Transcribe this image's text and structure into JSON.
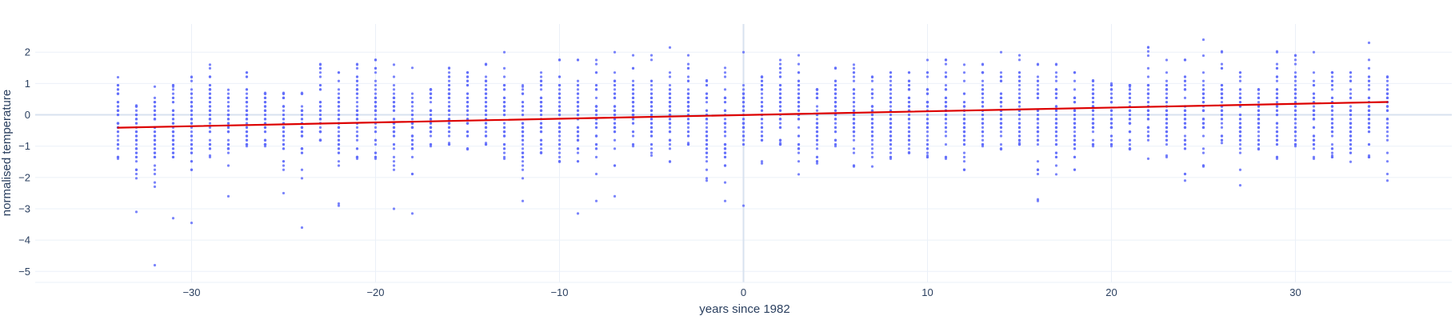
{
  "chart_data": {
    "type": "scatter",
    "xlabel": "years since 1982",
    "ylabel": "normalised temperature",
    "xlim": [
      -38.5,
      38.5
    ],
    "ylim": [
      -5.35,
      2.9
    ],
    "x_ticks": [
      -30,
      -20,
      -10,
      0,
      10,
      20,
      30
    ],
    "y_ticks": [
      2,
      1,
      0,
      -1,
      -2,
      -3,
      -4,
      -5
    ],
    "grid": true,
    "colors": {
      "points": "#636efa",
      "trend": "#dd0000",
      "grid": "#ebf0f8",
      "zeroline": "#d8e2ef",
      "text": "#2a3f5f"
    },
    "years": [
      -34,
      -33,
      -32,
      -31,
      -30,
      -29,
      -28,
      -27,
      -26,
      -25,
      -24,
      -23,
      -22,
      -21,
      -20,
      -19,
      -18,
      -17,
      -16,
      -15,
      -14,
      -13,
      -12,
      -11,
      -10,
      -9,
      -8,
      -7,
      -6,
      -5,
      -4,
      -3,
      -2,
      -1,
      0,
      1,
      2,
      3,
      4,
      5,
      6,
      7,
      8,
      9,
      10,
      11,
      12,
      13,
      14,
      15,
      16,
      17,
      18,
      19,
      20,
      21,
      22,
      23,
      24,
      25,
      26,
      27,
      28,
      29,
      30,
      31,
      32,
      33,
      34,
      35
    ],
    "points_per_year": 45,
    "columns": [
      {
        "x": -34,
        "min": -1.4,
        "max": 1.2
      },
      {
        "x": -33,
        "min": -3.1,
        "max": 0.3
      },
      {
        "x": -32,
        "min": -4.8,
        "max": 0.9
      },
      {
        "x": -31,
        "min": -3.3,
        "max": 0.9
      },
      {
        "x": -30,
        "min": -3.45,
        "max": 1.2
      },
      {
        "x": -29,
        "min": -1.3,
        "max": 1.6
      },
      {
        "x": -28,
        "min": -2.6,
        "max": 0.8
      },
      {
        "x": -27,
        "min": -1.0,
        "max": 1.35
      },
      {
        "x": -26,
        "min": -1.0,
        "max": 0.7
      },
      {
        "x": -25,
        "min": -2.5,
        "max": 0.7
      },
      {
        "x": -24,
        "min": -3.6,
        "max": 0.7
      },
      {
        "x": -23,
        "min": -0.8,
        "max": 1.6
      },
      {
        "x": -22,
        "min": -2.9,
        "max": 1.35
      },
      {
        "x": -21,
        "min": -1.4,
        "max": 1.6
      },
      {
        "x": -20,
        "min": -1.4,
        "max": 1.75
      },
      {
        "x": -19,
        "min": -3.0,
        "max": 1.6
      },
      {
        "x": -18,
        "min": -3.15,
        "max": 1.5
      },
      {
        "x": -17,
        "min": -1.0,
        "max": 0.8
      },
      {
        "x": -16,
        "min": -0.9,
        "max": 1.5
      },
      {
        "x": -15,
        "min": -1.1,
        "max": 1.35
      },
      {
        "x": -14,
        "min": -0.9,
        "max": 1.6
      },
      {
        "x": -13,
        "min": -1.4,
        "max": 2.0
      },
      {
        "x": -12,
        "min": -2.75,
        "max": 0.9
      },
      {
        "x": -11,
        "min": -1.2,
        "max": 1.35
      },
      {
        "x": -10,
        "min": -1.5,
        "max": 1.75
      },
      {
        "x": -9,
        "min": -3.15,
        "max": 1.75
      },
      {
        "x": -8,
        "min": -2.75,
        "max": 1.75
      },
      {
        "x": -7,
        "min": -2.6,
        "max": 2.0
      },
      {
        "x": -6,
        "min": -1.0,
        "max": 1.9
      },
      {
        "x": -5,
        "min": -1.3,
        "max": 1.9
      },
      {
        "x": -4,
        "min": -1.5,
        "max": 2.15
      },
      {
        "x": -3,
        "min": -0.9,
        "max": 1.9
      },
      {
        "x": -2,
        "min": -2.1,
        "max": 1.1
      },
      {
        "x": -1,
        "min": -2.75,
        "max": 1.5
      },
      {
        "x": 0,
        "min": -2.9,
        "max": 2.0
      },
      {
        "x": 1,
        "min": -1.55,
        "max": 1.2
      },
      {
        "x": 2,
        "min": -0.9,
        "max": 1.75
      },
      {
        "x": 3,
        "min": -1.9,
        "max": 1.9
      },
      {
        "x": 4,
        "min": -1.55,
        "max": 0.8
      },
      {
        "x": 5,
        "min": -1.0,
        "max": 1.5
      },
      {
        "x": 6,
        "min": -1.65,
        "max": 1.6
      },
      {
        "x": 7,
        "min": -1.65,
        "max": 1.2
      },
      {
        "x": 8,
        "min": -1.4,
        "max": 1.35
      },
      {
        "x": 9,
        "min": -1.2,
        "max": 1.35
      },
      {
        "x": 10,
        "min": -1.3,
        "max": 1.75
      },
      {
        "x": 11,
        "min": -1.4,
        "max": 1.75
      },
      {
        "x": 12,
        "min": -1.75,
        "max": 1.6
      },
      {
        "x": 13,
        "min": -1.0,
        "max": 1.6
      },
      {
        "x": 14,
        "min": -1.1,
        "max": 2.0
      },
      {
        "x": 15,
        "min": -0.9,
        "max": 1.9
      },
      {
        "x": 16,
        "min": -2.75,
        "max": 1.6
      },
      {
        "x": 17,
        "min": -1.9,
        "max": 1.6
      },
      {
        "x": 18,
        "min": -1.75,
        "max": 1.35
      },
      {
        "x": 19,
        "min": -1.0,
        "max": 1.1
      },
      {
        "x": 20,
        "min": -1.0,
        "max": 1.0
      },
      {
        "x": 21,
        "min": -1.1,
        "max": 0.9
      },
      {
        "x": 22,
        "min": -1.4,
        "max": 2.15
      },
      {
        "x": 23,
        "min": -1.3,
        "max": 1.75
      },
      {
        "x": 24,
        "min": -2.1,
        "max": 1.75
      },
      {
        "x": 25,
        "min": -1.65,
        "max": 2.4
      },
      {
        "x": 26,
        "min": -0.9,
        "max": 2.0
      },
      {
        "x": 27,
        "min": -2.25,
        "max": 1.35
      },
      {
        "x": 28,
        "min": -1.1,
        "max": 0.8
      },
      {
        "x": 29,
        "min": -1.4,
        "max": 2.0
      },
      {
        "x": 30,
        "min": -1.0,
        "max": 1.9
      },
      {
        "x": 31,
        "min": -1.4,
        "max": 2.0
      },
      {
        "x": 32,
        "min": -1.3,
        "max": 1.35
      },
      {
        "x": 33,
        "min": -1.5,
        "max": 1.35
      },
      {
        "x": 34,
        "min": -1.3,
        "max": 2.3
      },
      {
        "x": 35,
        "min": -2.1,
        "max": 1.2
      }
    ],
    "series": [
      {
        "name": "",
        "kind": "scatter"
      },
      {
        "name": "",
        "kind": "trend",
        "x": [
          -34,
          35
        ],
        "y": [
          -0.41,
          0.41
        ]
      }
    ]
  }
}
